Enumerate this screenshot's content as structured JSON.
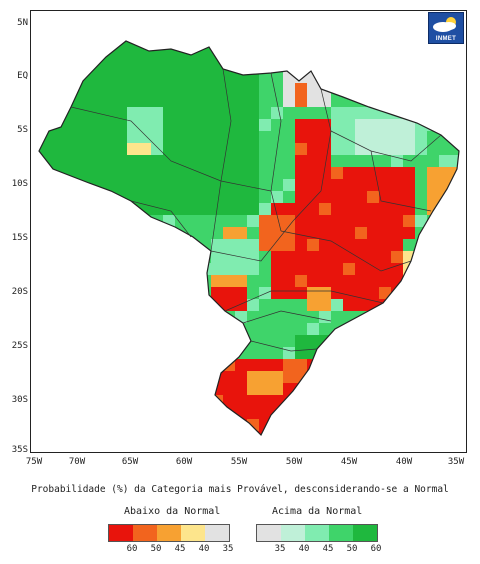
{
  "map": {
    "caption": "Probabilidade (%) da Categoria mais Provável, desconsiderando-se a Normal",
    "lat_ticks": [
      "5N",
      "EQ",
      "5S",
      "10S",
      "15S",
      "20S",
      "25S",
      "30S",
      "35S"
    ],
    "lon_ticks": [
      "75W",
      "70W",
      "65W",
      "60W",
      "55W",
      "50W",
      "45W",
      "40W",
      "35W"
    ],
    "colors": {
      "below_60": "#e8140c",
      "below_50": "#f2641e",
      "below_45": "#f7a132",
      "below_40": "#fde58c",
      "neutral": "#e2e2e2",
      "above_40": "#bff0d8",
      "above_45": "#80ecb0",
      "above_50": "#3fd46a",
      "above_60": "#1fb83e"
    }
  },
  "legend": {
    "below_title": "Abaixo da Normal",
    "above_title": "Acima da Normal",
    "below_labels": [
      "60",
      "50",
      "45",
      "40",
      "35"
    ],
    "above_labels": [
      "35",
      "40",
      "45",
      "50",
      "60"
    ]
  },
  "logo": {
    "text": "INMET",
    "icon": "inmet-cloud-sun-logo"
  }
}
